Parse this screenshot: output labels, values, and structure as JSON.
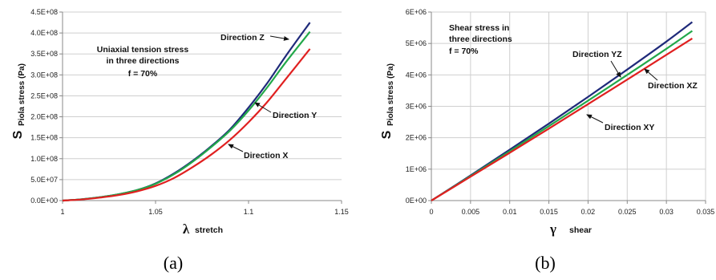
{
  "chart_data": [
    {
      "type": "line",
      "caption": "(a)",
      "note": [
        "Uniaxial tension stress",
        "in three directions",
        "f = 70%"
      ],
      "ylabel_symbol": "S",
      "ylabel": "Piola stress (Pa)",
      "xlabel_symbol": "λ",
      "xlabel": "stretch",
      "xlim": [
        1,
        1.15
      ],
      "ylim": [
        0,
        450000000
      ],
      "xticks": [
        1,
        1.05,
        1.1,
        1.15
      ],
      "xtick_labels": [
        "1",
        "1.05",
        "1.1",
        "1.15"
      ],
      "yticks": [
        0,
        50000000,
        100000000,
        150000000,
        200000000,
        250000000,
        300000000,
        350000000,
        400000000,
        450000000
      ],
      "ytick_labels": [
        "0.0E+00",
        "5.0E+07",
        "1.0E+08",
        "1.5E+08",
        "2.0E+08",
        "2.5E+08",
        "3.0E+08",
        "3.5E+08",
        "4.0E+08",
        "4.5E+08"
      ],
      "grid": "horizontal",
      "series": [
        {
          "name": "Direction Z",
          "color": "#1f2a7a",
          "x": [
            1,
            1.01,
            1.02,
            1.03,
            1.04,
            1.05,
            1.06,
            1.07,
            1.08,
            1.09,
            1.1,
            1.11,
            1.12,
            1.133
          ],
          "y": [
            0,
            3000000,
            8000000,
            15000000,
            25000000,
            41000000,
            65000000,
            95000000,
            130000000,
            170000000,
            222000000,
            280000000,
            345000000,
            425000000
          ]
        },
        {
          "name": "Direction Y",
          "color": "#22a84a",
          "x": [
            1,
            1.01,
            1.02,
            1.03,
            1.04,
            1.05,
            1.06,
            1.07,
            1.08,
            1.09,
            1.1,
            1.11,
            1.12,
            1.133
          ],
          "y": [
            0,
            3000000,
            8000000,
            15000000,
            25000000,
            40000000,
            63000000,
            93000000,
            128000000,
            167000000,
            215000000,
            270000000,
            330000000,
            403000000
          ]
        },
        {
          "name": "Direction X",
          "color": "#e02020",
          "x": [
            1,
            1.01,
            1.02,
            1.03,
            1.04,
            1.05,
            1.06,
            1.07,
            1.08,
            1.09,
            1.1,
            1.11,
            1.12,
            1.133
          ],
          "y": [
            0,
            2500000,
            7000000,
            13000000,
            22000000,
            35000000,
            54000000,
            80000000,
            110000000,
            145000000,
            187000000,
            235000000,
            290000000,
            362000000
          ]
        }
      ],
      "annotations": [
        {
          "text": "Direction Z",
          "series": "Direction Z"
        },
        {
          "text": "Direction Y",
          "series": "Direction Y"
        },
        {
          "text": "Direction X",
          "series": "Direction X"
        }
      ]
    },
    {
      "type": "line",
      "caption": "(b)",
      "note": [
        "Shear stress in",
        "three directions",
        "f = 70%"
      ],
      "ylabel_symbol": "S",
      "ylabel": "Piola stress (Pa)",
      "xlabel_symbol": "γ",
      "xlabel": "shear",
      "xlim": [
        0,
        0.035
      ],
      "ylim": [
        0,
        6000000
      ],
      "xticks": [
        0,
        0.005,
        0.01,
        0.015,
        0.02,
        0.025,
        0.03,
        0.035
      ],
      "xtick_labels": [
        "0",
        "0.005",
        "0.01",
        "0.015",
        "0.02",
        "0.025",
        "0.03",
        "0.035"
      ],
      "yticks": [
        0,
        1000000,
        2000000,
        3000000,
        4000000,
        5000000,
        6000000
      ],
      "ytick_labels": [
        "0E+00",
        "1E+06",
        "2E+06",
        "3E+06",
        "4E+06",
        "5E+06",
        "6E+06"
      ],
      "grid": "both",
      "series": [
        {
          "name": "Direction YZ",
          "color": "#1f2a7a",
          "x": [
            0,
            0.005,
            0.01,
            0.015,
            0.02,
            0.025,
            0.03,
            0.0333
          ],
          "y": [
            0,
            800000,
            1620000,
            2450000,
            3300000,
            4170000,
            5060000,
            5680000
          ]
        },
        {
          "name": "Direction XZ",
          "color": "#22a84a",
          "x": [
            0,
            0.005,
            0.01,
            0.015,
            0.02,
            0.025,
            0.03,
            0.0333
          ],
          "y": [
            0,
            780000,
            1570000,
            2370000,
            3180000,
            4000000,
            4830000,
            5400000
          ]
        },
        {
          "name": "Direction XY",
          "color": "#e02020",
          "x": [
            0,
            0.005,
            0.01,
            0.015,
            0.02,
            0.025,
            0.03,
            0.0333
          ],
          "y": [
            0,
            760000,
            1520000,
            2290000,
            3070000,
            3850000,
            4640000,
            5160000
          ]
        }
      ],
      "annotations": [
        {
          "text": "Direction YZ",
          "series": "Direction YZ"
        },
        {
          "text": "Direction XZ",
          "series": "Direction XZ"
        },
        {
          "text": "Direction XY",
          "series": "Direction XY"
        }
      ]
    }
  ]
}
